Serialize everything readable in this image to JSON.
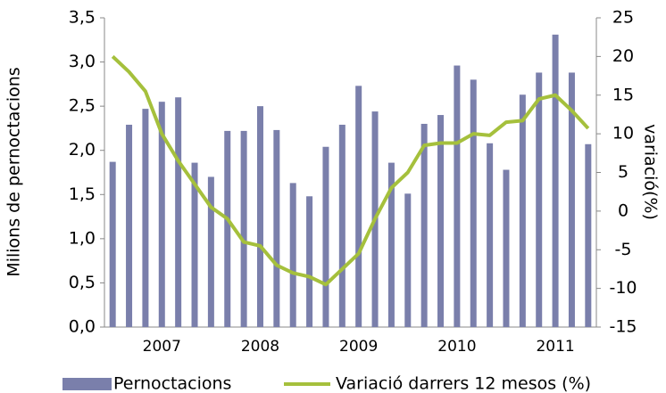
{
  "chart_data": {
    "type": "bar-line",
    "categories": [
      null,
      null,
      null,
      "2007",
      null,
      null,
      null,
      null,
      null,
      "2008",
      null,
      null,
      null,
      null,
      null,
      "2009",
      null,
      null,
      null,
      null,
      null,
      "2010",
      null,
      null,
      null,
      null,
      null,
      "2011",
      null,
      null
    ],
    "series": [
      {
        "name": "Pernoctacions",
        "type": "bar",
        "color": "#7a7fab",
        "values": [
          1.87,
          2.29,
          2.47,
          2.55,
          2.6,
          1.86,
          1.7,
          2.22,
          2.22,
          2.5,
          2.23,
          1.63,
          1.48,
          2.04,
          2.29,
          2.73,
          2.44,
          1.86,
          1.51,
          2.3,
          2.4,
          2.96,
          2.8,
          2.08,
          1.78,
          2.63,
          2.88,
          3.31,
          2.88,
          2.07
        ]
      },
      {
        "name": "Variació darrers 12 mesos (%)",
        "type": "line",
        "axis": "y2",
        "color": "#a5c03c",
        "values": [
          20,
          18,
          15.5,
          10,
          6.5,
          3.5,
          0.5,
          -1,
          -4,
          -4.5,
          -7,
          -8,
          -8.5,
          -9.5,
          -7.5,
          -5.5,
          -1,
          3,
          5,
          8.5,
          8.8,
          8.8,
          10,
          9.8,
          11.5,
          11.7,
          14.5,
          15,
          13,
          10.7
        ]
      }
    ],
    "ylabel": "Milions de pernoctacions",
    "y2label": "variació(%)",
    "ylim": [
      0,
      3.5
    ],
    "yticks": [
      {
        "value": 0,
        "label": "0,0"
      },
      {
        "value": 0.5,
        "label": "0,5"
      },
      {
        "value": 1,
        "label": "1,0"
      },
      {
        "value": 1.5,
        "label": "1,5"
      },
      {
        "value": 2,
        "label": "2,0"
      },
      {
        "value": 2.5,
        "label": "2,5"
      },
      {
        "value": 3,
        "label": "3,0"
      },
      {
        "value": 3.5,
        "label": "3,5"
      }
    ],
    "y2lim": [
      -15,
      25
    ],
    "y2ticks": [
      -15,
      -10,
      -5,
      0,
      5,
      10,
      15,
      20,
      25
    ],
    "grid": false,
    "legend": "bottom"
  }
}
